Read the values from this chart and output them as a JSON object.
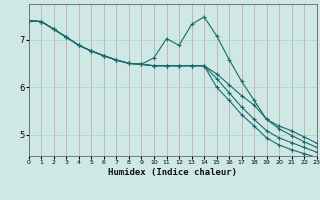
{
  "xlabel": "Humidex (Indice chaleur)",
  "background_color": "#cde8e5",
  "grid_color": "#aed0cc",
  "line_color": "#1a6b6b",
  "xmin": 0,
  "xmax": 23,
  "ymin": 4.55,
  "ymax": 7.75,
  "yticks": [
    5,
    6,
    7
  ],
  "xticks": [
    0,
    1,
    2,
    3,
    4,
    5,
    6,
    7,
    8,
    9,
    10,
    11,
    12,
    13,
    14,
    15,
    16,
    17,
    18,
    19,
    20,
    21,
    22,
    23
  ],
  "series": [
    [
      7.4,
      7.38,
      7.22,
      7.05,
      6.88,
      6.76,
      6.66,
      6.57,
      6.5,
      6.48,
      6.62,
      7.02,
      6.88,
      7.32,
      7.48,
      7.08,
      6.58,
      6.12,
      5.72,
      5.32,
      5.12,
      4.98,
      4.85,
      4.73
    ],
    [
      7.4,
      7.38,
      7.22,
      7.05,
      6.88,
      6.76,
      6.66,
      6.57,
      6.5,
      6.48,
      6.45,
      6.45,
      6.45,
      6.45,
      6.45,
      6.28,
      6.05,
      5.82,
      5.62,
      5.32,
      5.18,
      5.08,
      4.95,
      4.82
    ],
    [
      7.4,
      7.38,
      7.22,
      7.05,
      6.88,
      6.76,
      6.66,
      6.57,
      6.5,
      6.48,
      6.45,
      6.45,
      6.45,
      6.45,
      6.45,
      6.18,
      5.88,
      5.58,
      5.32,
      5.08,
      4.93,
      4.83,
      4.73,
      4.63
    ],
    [
      7.4,
      7.38,
      7.22,
      7.05,
      6.88,
      6.76,
      6.66,
      6.57,
      6.5,
      6.48,
      6.45,
      6.45,
      6.45,
      6.45,
      6.45,
      6.0,
      5.72,
      5.42,
      5.18,
      4.93,
      4.78,
      4.68,
      4.6,
      4.52
    ]
  ]
}
